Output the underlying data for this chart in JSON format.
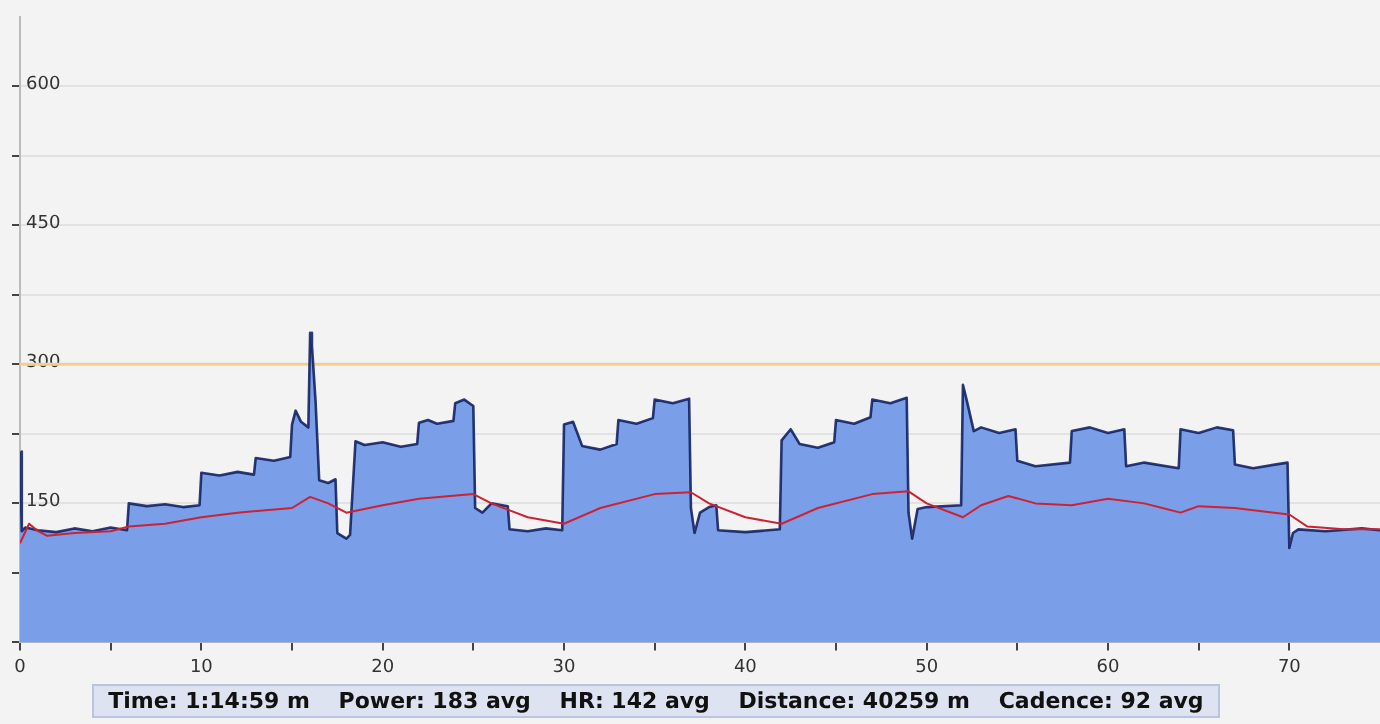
{
  "chart_data": {
    "type": "area",
    "xlim": [
      0,
      75
    ],
    "ylim": [
      0,
      675
    ],
    "xticks": [
      0,
      {
        "value": 5,
        "label": null
      },
      10,
      {
        "value": 15,
        "label": null
      },
      20,
      {
        "value": 25,
        "label": null
      },
      30,
      {
        "value": 35,
        "label": null
      },
      40,
      {
        "value": 45,
        "label": null
      },
      50,
      {
        "value": 55,
        "label": null
      },
      60,
      {
        "value": 65,
        "label": null
      },
      70
    ],
    "yticks": [
      {
        "value": 0,
        "label": null
      },
      {
        "value": 75,
        "label": null
      },
      150,
      {
        "value": 225,
        "label": null
      },
      300,
      {
        "value": 375,
        "label": null
      },
      450,
      {
        "value": 525,
        "label": null
      },
      600
    ],
    "grid": "y",
    "legend": false,
    "marker": "none",
    "series": [
      {
        "color": "#7a9ee8",
        "x": [
          0,
          0.1,
          0.3,
          1,
          2,
          3,
          4,
          5,
          5.9,
          6,
          7,
          8,
          9,
          9.9,
          10,
          11,
          12,
          12.9,
          13,
          14,
          14.9,
          15,
          15.2,
          15.5,
          15.9,
          16,
          16.1,
          16.3,
          16.5,
          17,
          17.4,
          17.5,
          18,
          18.2,
          18.5,
          19,
          20,
          21,
          21.9,
          22,
          22.5,
          23,
          23.9,
          24,
          24.5,
          25,
          25.1,
          25.5,
          26,
          26.9,
          27,
          28,
          29,
          29.9,
          30,
          30.5,
          31,
          32,
          32.9,
          33,
          34,
          34.9,
          35,
          36,
          36.9,
          37,
          37.2,
          37.5,
          38,
          38.4,
          38.5,
          40,
          41.9,
          42,
          42.5,
          43,
          44,
          44.9,
          45,
          46,
          46.9,
          47,
          48,
          48.9,
          49,
          49.2,
          49.5,
          50,
          51.9,
          52,
          52.2,
          52.6,
          53,
          54,
          54.9,
          55,
          56,
          57.9,
          58,
          59,
          60,
          60.9,
          61,
          62,
          63.9,
          64,
          65,
          66,
          66.9,
          67,
          68,
          69.9,
          70,
          70.2,
          70.5,
          72,
          74,
          75
        ],
        "values": [
          206,
          120,
          124,
          121,
          119,
          123,
          120,
          124,
          121,
          150,
          147,
          149,
          146,
          148,
          183,
          180,
          184,
          181,
          199,
          196,
          200,
          235,
          250,
          238,
          232,
          334,
          320,
          260,
          175,
          172,
          176,
          118,
          112,
          116,
          217,
          213,
          216,
          211,
          214,
          237,
          240,
          236,
          239,
          258,
          262,
          255,
          145,
          140,
          150,
          147,
          122,
          120,
          123,
          121,
          235,
          238,
          212,
          208,
          214,
          240,
          236,
          242,
          262,
          258,
          263,
          145,
          118,
          140,
          146,
          148,
          121,
          119,
          122,
          218,
          230,
          214,
          210,
          216,
          240,
          236,
          243,
          262,
          258,
          264,
          140,
          112,
          144,
          146,
          148,
          278,
          262,
          228,
          232,
          226,
          230,
          196,
          190,
          194,
          228,
          232,
          226,
          230,
          190,
          194,
          188,
          230,
          226,
          232,
          229,
          192,
          188,
          194,
          102,
          118,
          122,
          120,
          123,
          121
        ]
      },
      {
        "type": "line",
        "color": "#cc2233",
        "x": [
          0,
          0.5,
          1,
          1.5,
          3,
          5,
          6,
          8,
          10,
          12,
          15,
          16,
          17,
          18,
          20,
          22,
          25,
          26,
          28,
          30,
          32,
          35,
          37,
          38,
          40,
          42,
          44,
          47,
          49,
          50,
          52,
          53,
          54.5,
          56,
          58,
          60,
          62,
          64,
          65,
          67,
          70,
          71,
          73,
          75
        ],
        "values": [
          107,
          128,
          120,
          115,
          118,
          120,
          125,
          128,
          135,
          140,
          145,
          157,
          150,
          140,
          148,
          155,
          160,
          150,
          135,
          128,
          145,
          160,
          162,
          150,
          135,
          128,
          145,
          160,
          163,
          150,
          135,
          148,
          158,
          150,
          148,
          155,
          150,
          140,
          147,
          145,
          138,
          125,
          122,
          122
        ]
      }
    ],
    "ref_lines": [
      {
        "axis": "y",
        "value": 300,
        "color": "#f0d090"
      }
    ],
    "annotations": [
      "Time: 1:14:59 m",
      "Power: 183 avg",
      "HR: 142 avg",
      "Distance: 40259 m",
      "Cadence: 92 avg"
    ]
  }
}
